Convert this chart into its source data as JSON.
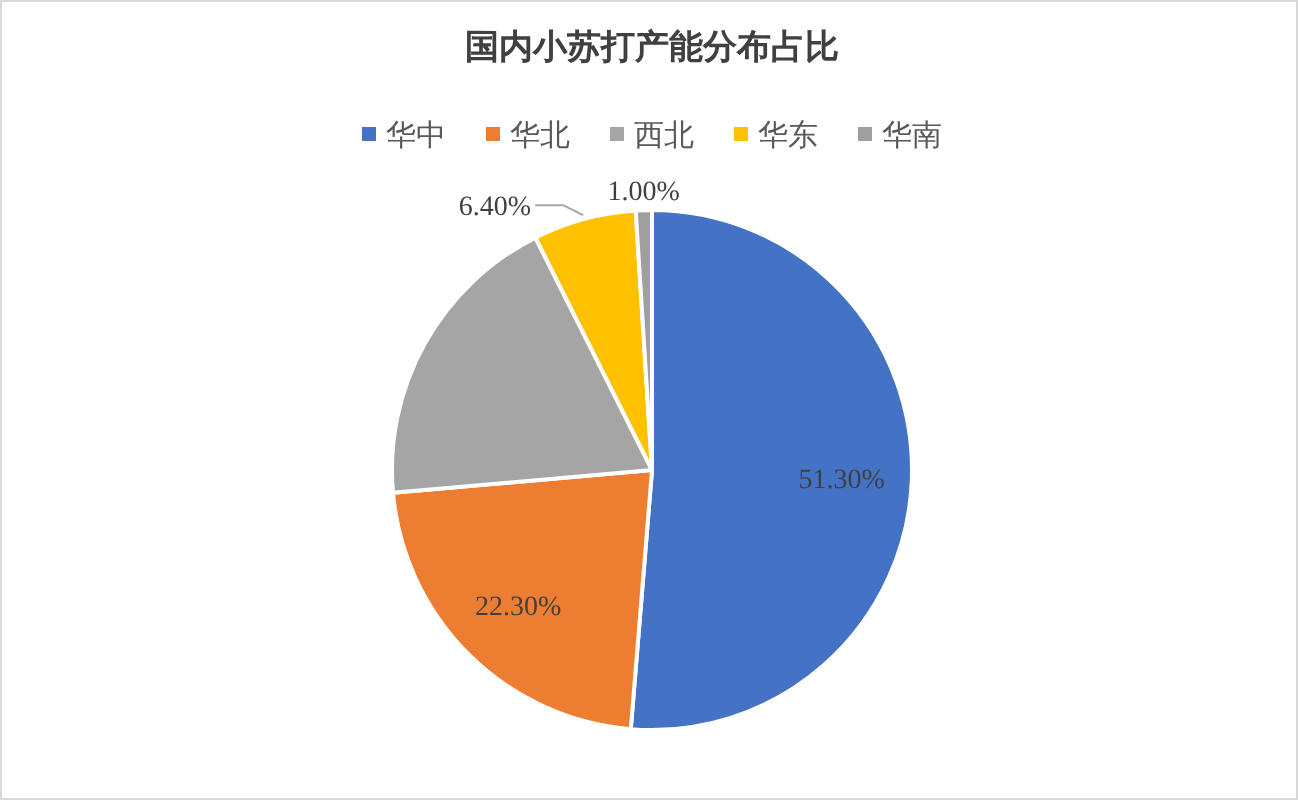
{
  "chart_data": {
    "type": "pie",
    "title": "国内小苏打产能分布占比",
    "categories": [
      "华中",
      "华北",
      "西北",
      "华东",
      "华南"
    ],
    "values": [
      51.3,
      22.3,
      19.0,
      6.4,
      1.0
    ],
    "colors": [
      "#4472c4",
      "#ed7d31",
      "#a5a5a5",
      "#ffc000",
      "#9f9f9f"
    ],
    "value_labels": [
      "51.30%",
      "22.30%",
      null,
      "6.40%",
      "1.00%"
    ],
    "legend": "top"
  }
}
